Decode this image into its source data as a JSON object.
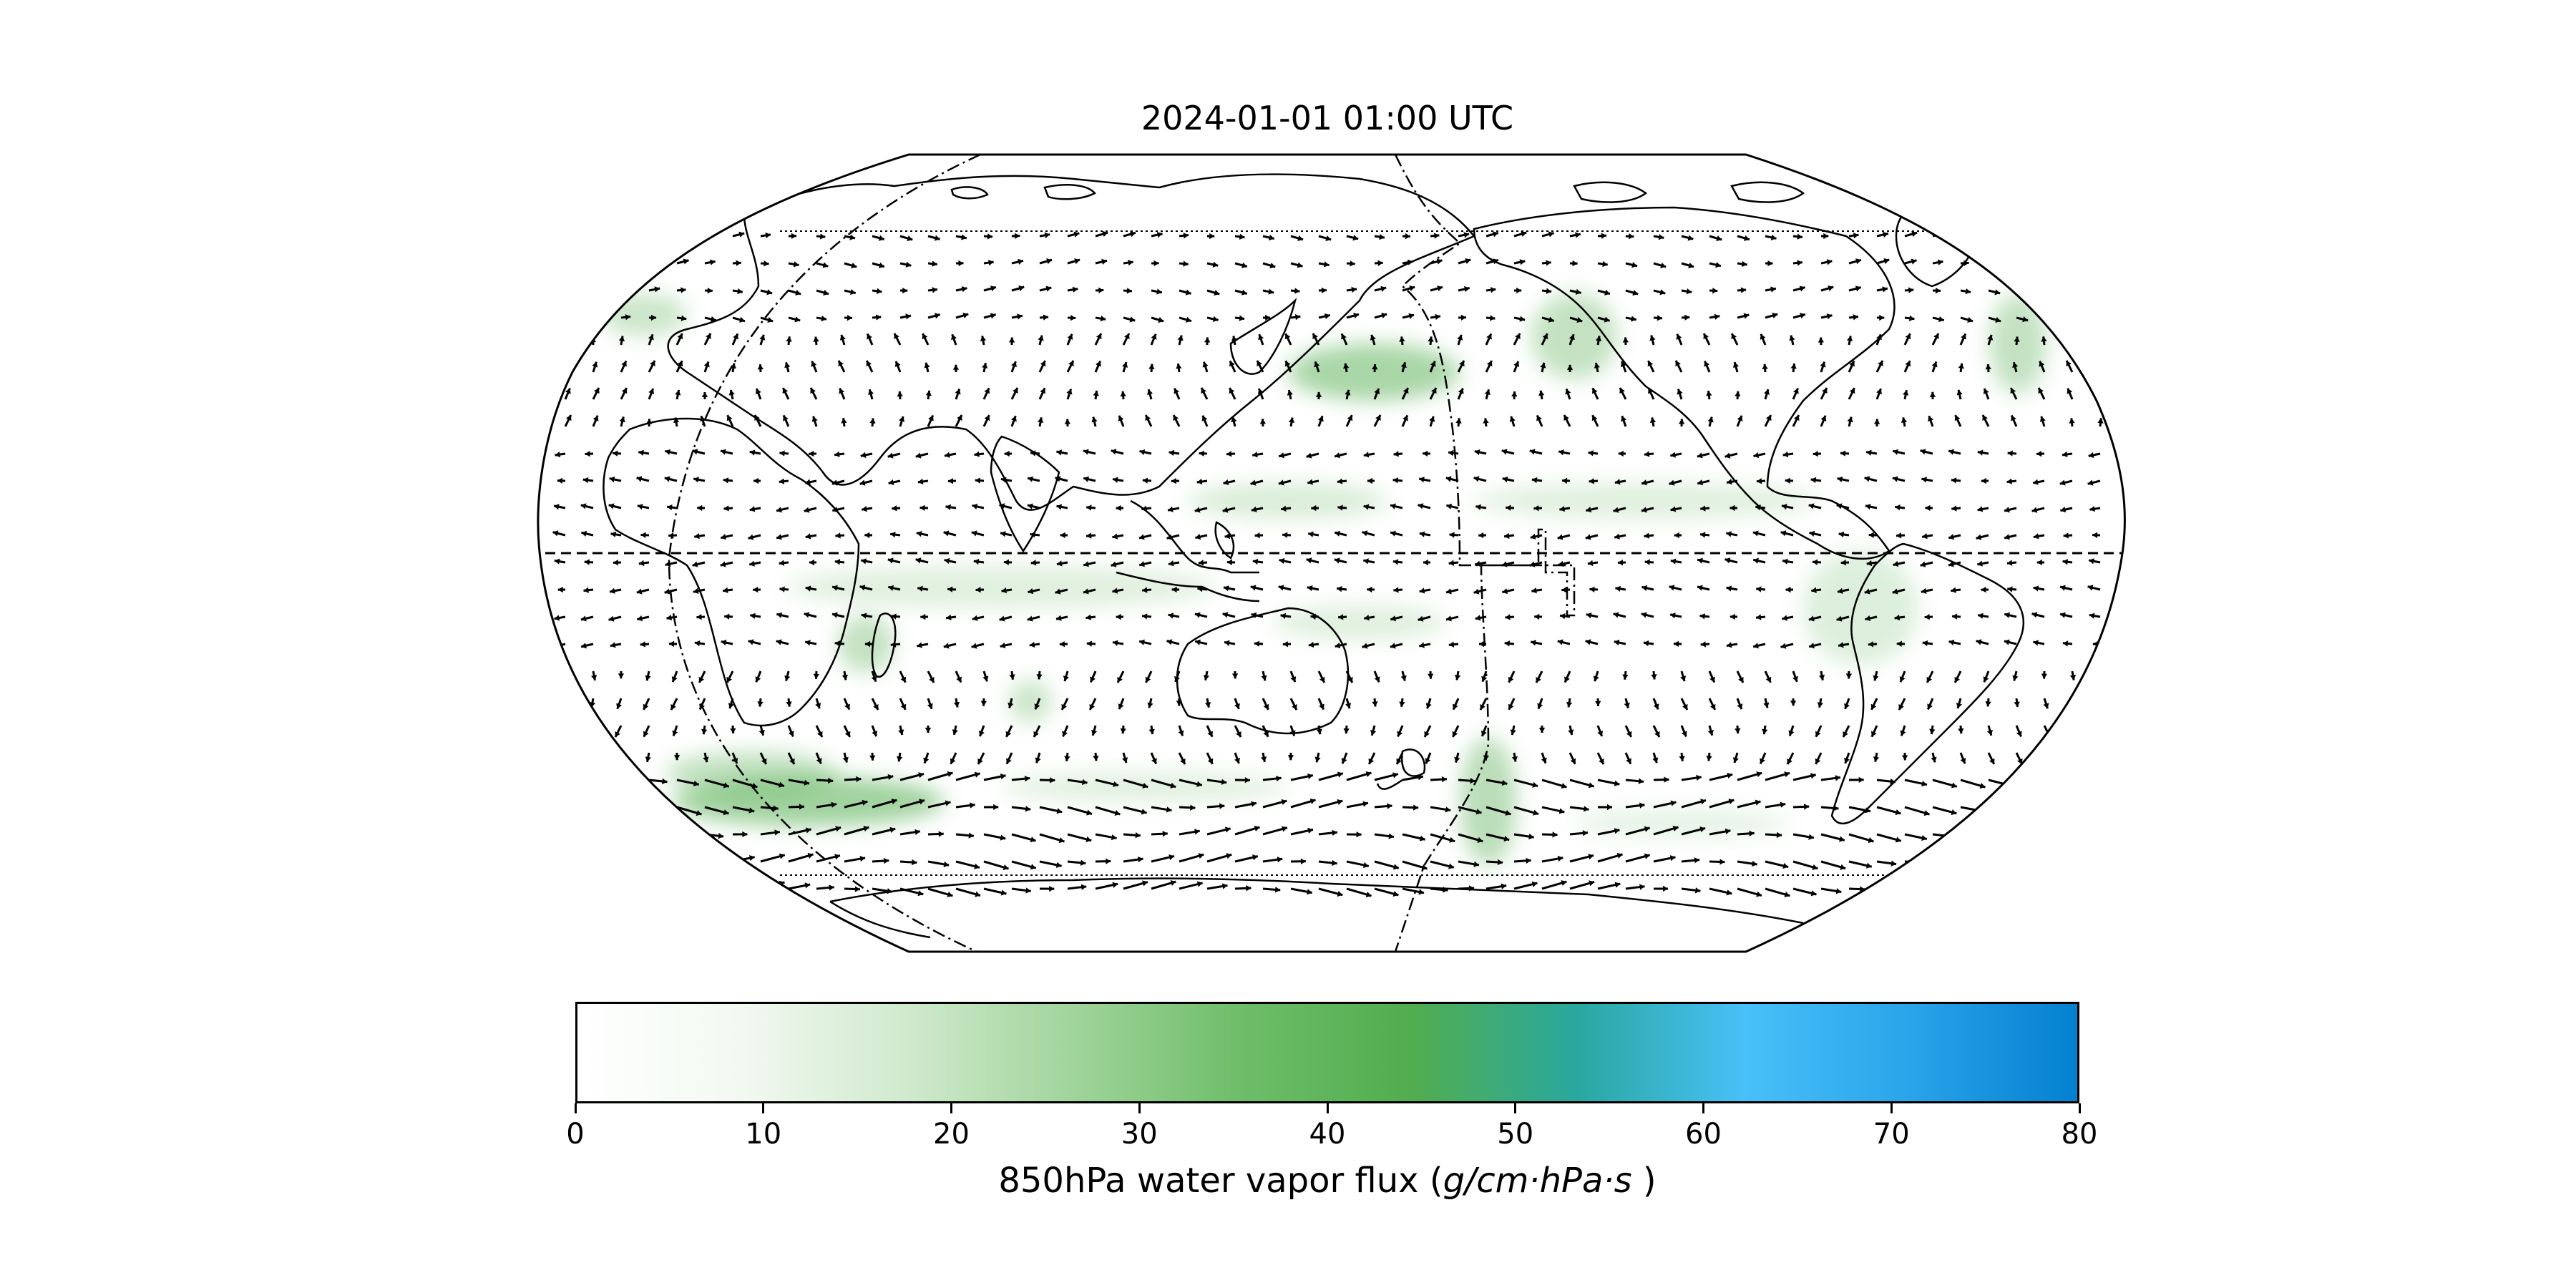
{
  "title": "2024-01-01 01:00 UTC",
  "colorbar": {
    "label_prefix": "850hPa water vapor flux (",
    "label_units": "g/cm·hPa·s",
    "label_suffix": " )",
    "min": 0,
    "max": 80,
    "ticks": [
      "0",
      "10",
      "20",
      "30",
      "40",
      "50",
      "60",
      "70",
      "80"
    ],
    "colors": [
      "#ffffff",
      "#f2f9f1",
      "#cfe9cc",
      "#9fd49a",
      "#6dbd68",
      "#52ad4f",
      "#29a8a0",
      "#49c0f8",
      "#29a4ea",
      "#0380d0"
    ]
  },
  "map": {
    "projection": "Robinson",
    "shading_color": "#52ad4f",
    "line_color": "#000000"
  }
}
